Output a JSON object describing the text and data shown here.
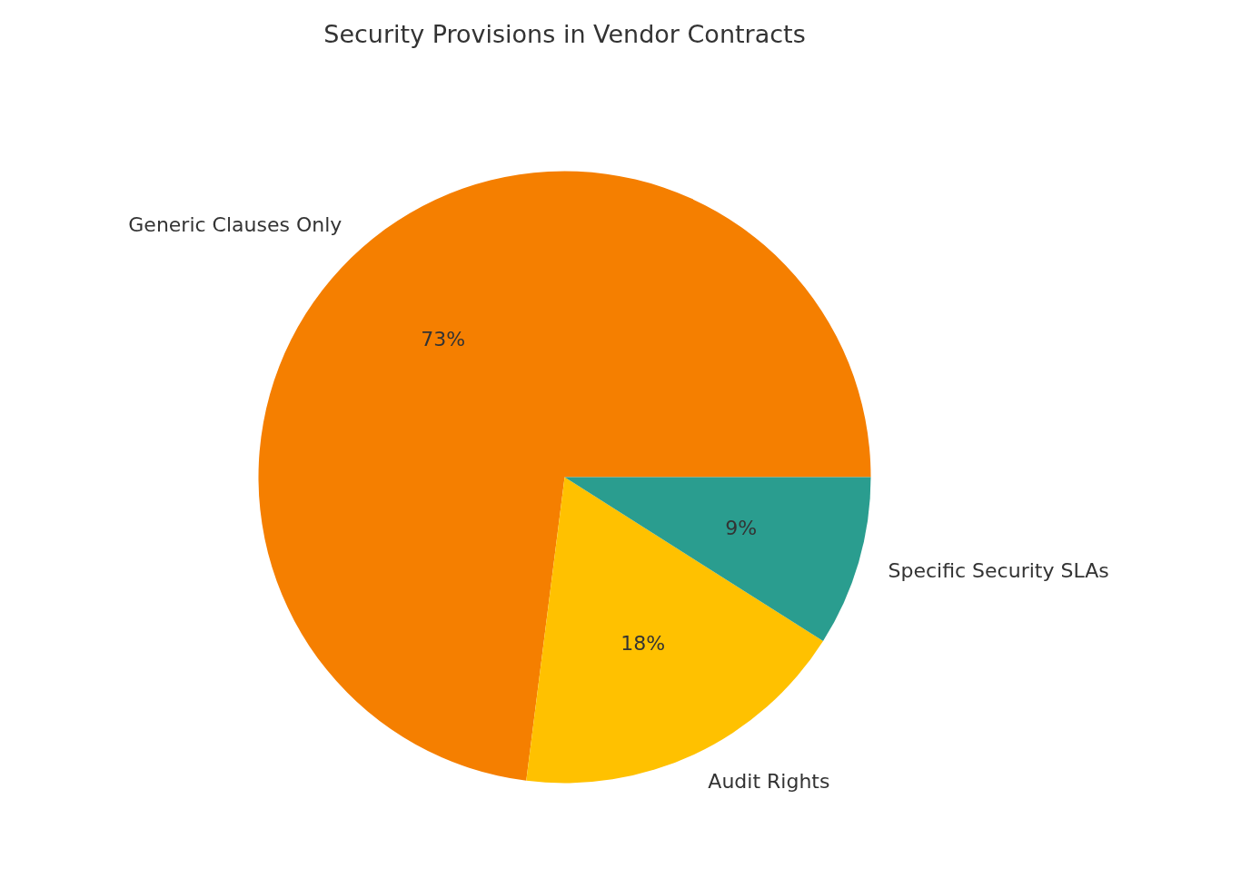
{
  "chart_data": {
    "type": "pie",
    "title": "Security Provisions in Vendor Contracts",
    "categories": [
      "Generic Clauses Only",
      "Audit Rights",
      "Specific Security SLAs"
    ],
    "values": [
      73,
      18,
      9
    ],
    "colors": [
      "#f57f00",
      "#ffc100",
      "#2a9d8f"
    ],
    "value_labels": [
      "73%",
      "18%",
      "9%"
    ]
  }
}
